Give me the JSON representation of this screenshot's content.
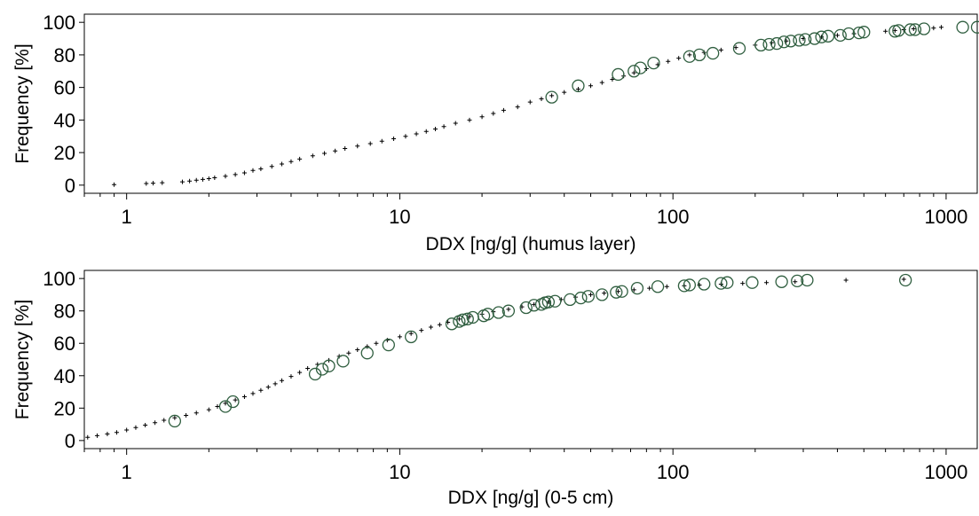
{
  "chart_data": [
    {
      "type": "scatter",
      "xlabel": "DDX [ng/g] (humus layer)",
      "ylabel": "Frequency [%]",
      "xscale": "log",
      "xlim": [
        0.7,
        1300
      ],
      "ylim": [
        -5,
        105
      ],
      "xticks": [
        1,
        10,
        100,
        1000
      ],
      "xtick_labels": [
        "1",
        "10",
        "100",
        "1000"
      ],
      "yticks": [
        0,
        20,
        40,
        60,
        80,
        100
      ],
      "ytick_labels": [
        "0",
        "20",
        "40",
        "60",
        "80",
        "100"
      ],
      "grid": false,
      "series": [
        {
          "marker": "plus",
          "color": "#000000",
          "x": [
            0.9,
            1.18,
            1.25,
            1.35,
            1.6,
            1.7,
            1.8,
            1.9,
            2.0,
            2.1,
            2.3,
            2.5,
            2.7,
            2.9,
            3.1,
            3.4,
            3.7,
            4.0,
            4.3,
            4.8,
            5.3,
            5.8,
            6.3,
            7.0,
            7.8,
            8.6,
            9.5,
            10.5,
            11.5,
            12.5,
            13.5,
            14.5,
            16,
            18,
            20,
            22,
            24,
            27,
            30,
            33,
            36,
            40,
            45,
            50,
            55,
            60,
            66,
            72,
            80,
            88,
            96,
            105,
            115,
            130,
            150,
            170,
            200,
            230,
            260,
            300,
            350,
            400,
            460,
            600,
            650,
            700,
            760,
            900,
            960
          ],
          "y": [
            0.3,
            1,
            1.2,
            1.5,
            2,
            2.5,
            3,
            3.5,
            4,
            4.5,
            5.5,
            6.5,
            7.5,
            9,
            10,
            11.5,
            13,
            14.5,
            16,
            18,
            19.5,
            21,
            22.5,
            24,
            25.5,
            27,
            28.5,
            30,
            31.5,
            33,
            34.5,
            36,
            38,
            40,
            42,
            44,
            46,
            48,
            51,
            53,
            55,
            57,
            59,
            61,
            63,
            65,
            67,
            69,
            71.5,
            74,
            76,
            78,
            80,
            81.5,
            83,
            84.5,
            86,
            87.5,
            88.5,
            90,
            91,
            92,
            93,
            94.5,
            95,
            95.5,
            96,
            96.5,
            97
          ]
        },
        {
          "marker": "circle",
          "color": "#2f5e3f",
          "x": [
            36,
            45,
            63,
            72,
            76,
            85,
            115,
            125,
            140,
            175,
            210,
            225,
            240,
            255,
            270,
            290,
            305,
            330,
            350,
            370,
            410,
            440,
            480,
            500,
            650,
            670,
            740,
            770,
            830,
            1150,
            1300
          ],
          "y": [
            54,
            61,
            68,
            70,
            72,
            75,
            79,
            80,
            81,
            84,
            86,
            86.5,
            87,
            88,
            88.5,
            89,
            89.5,
            90,
            91,
            91.5,
            92,
            93,
            93.5,
            94,
            94.5,
            95,
            95.5,
            95.5,
            96,
            97,
            97
          ]
        }
      ]
    },
    {
      "type": "scatter",
      "xlabel": "DDX [ng/g] (0-5 cm)",
      "ylabel": "Frequency [%]",
      "xscale": "log",
      "xlim": [
        0.7,
        1300
      ],
      "ylim": [
        -5,
        105
      ],
      "xticks": [
        1,
        10,
        100,
        1000
      ],
      "xtick_labels": [
        "1",
        "10",
        "100",
        "1000"
      ],
      "yticks": [
        0,
        20,
        40,
        60,
        80,
        100
      ],
      "ytick_labels": [
        "0",
        "20",
        "40",
        "60",
        "80",
        "100"
      ],
      "grid": false,
      "series": [
        {
          "marker": "plus",
          "color": "#000000",
          "x": [
            0.72,
            0.78,
            0.85,
            0.92,
            1.0,
            1.08,
            1.17,
            1.27,
            1.37,
            1.5,
            1.65,
            1.8,
            2.0,
            2.15,
            2.3,
            2.5,
            2.7,
            2.9,
            3.1,
            3.3,
            3.5,
            3.7,
            4.0,
            4.3,
            4.6,
            5.0,
            5.5,
            6.0,
            6.5,
            7.0,
            7.6,
            8.2,
            9.0,
            10,
            11,
            12,
            13,
            14,
            15,
            16.5,
            18,
            20,
            22,
            25,
            28,
            31,
            35,
            39,
            44,
            50,
            56,
            63,
            72,
            82,
            95,
            110,
            125,
            150,
            180,
            220,
            280,
            430,
            700
          ],
          "y": [
            2,
            3,
            4,
            5,
            6.5,
            8,
            9.5,
            11,
            12.5,
            14,
            15.5,
            17,
            19,
            21,
            23,
            25,
            27,
            29,
            31,
            33,
            35,
            37,
            39.5,
            42,
            44.5,
            47,
            49.5,
            52,
            54,
            56,
            58,
            60,
            62,
            64,
            66,
            68,
            70,
            71.5,
            73,
            75,
            76.5,
            78,
            79.5,
            81,
            82.5,
            84,
            85.5,
            87,
            88.5,
            90,
            91,
            92,
            93,
            94,
            95,
            95.5,
            96,
            96.5,
            97,
            97.5,
            98,
            99,
            99.5
          ]
        },
        {
          "marker": "circle",
          "color": "#2f5e3f",
          "x": [
            1.5,
            2.3,
            2.45,
            4.9,
            5.2,
            5.5,
            6.2,
            7.6,
            9.1,
            11,
            15.5,
            16.5,
            17,
            17.7,
            18.5,
            20.3,
            21,
            23,
            25,
            29,
            31,
            33,
            34,
            35,
            37,
            42,
            46,
            49,
            55,
            62,
            65,
            74,
            88,
            110,
            115,
            130,
            150,
            158,
            195,
            250,
            285,
            310,
            710
          ],
          "y": [
            12,
            21,
            24,
            41,
            44,
            46,
            49,
            54,
            59,
            64,
            72,
            73.5,
            74.5,
            75,
            76,
            77,
            78,
            79,
            80,
            82,
            83.5,
            84,
            85,
            85.5,
            86,
            87,
            88,
            89,
            90,
            91.5,
            92,
            94,
            95,
            95.5,
            96,
            96.5,
            97,
            97.5,
            97.5,
            98,
            98.5,
            99,
            99
          ]
        }
      ]
    }
  ]
}
